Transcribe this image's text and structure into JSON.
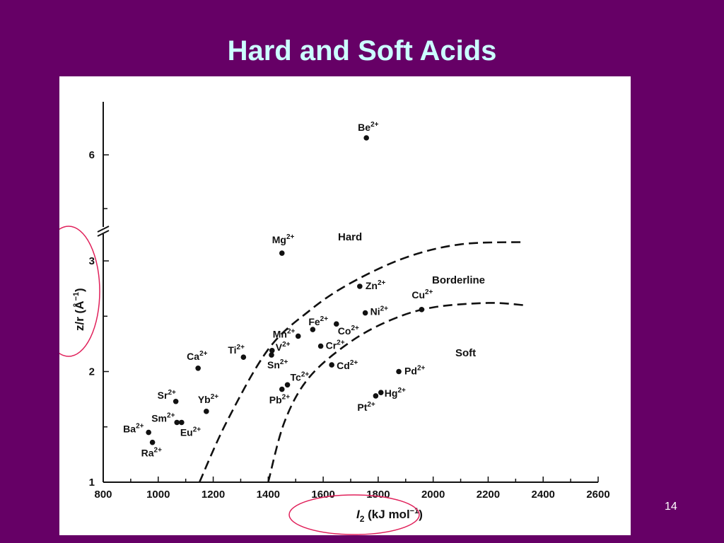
{
  "slide": {
    "title": "Hard and Soft Acids",
    "page_number": "14"
  },
  "colors": {
    "background": "#660066",
    "title": "#ccffff",
    "panel": "#ffffff",
    "ink": "#111111",
    "highlight_ring": "#e0205a"
  },
  "chart_data": {
    "type": "scatter",
    "title": "",
    "xlabel": "I2 (kJ mol−1)",
    "xlabel_parts": {
      "symbol": "I",
      "sub": "2",
      "unit": " (kJ mol",
      "exp": "−1",
      "close": ")"
    },
    "ylabel": "z/r (Å−1)",
    "ylabel_parts": {
      "main": "z/r (Å",
      "exp": "−1",
      "close": ")"
    },
    "xlim": [
      800,
      2600
    ],
    "x_ticks": [
      800,
      1000,
      1200,
      1400,
      1600,
      1800,
      2000,
      2200,
      2400,
      2600
    ],
    "y_ticks": [
      1,
      2,
      3,
      6
    ],
    "y_axis_break": {
      "between": [
        3.2,
        5.5
      ]
    },
    "grid": false,
    "region_labels": [
      "Hard",
      "Borderline",
      "Soft"
    ],
    "boundaries": [
      {
        "name": "hard-borderline",
        "style": "dashed",
        "points": [
          [
            1150,
            1.0
          ],
          [
            1250,
            1.55
          ],
          [
            1400,
            2.2
          ],
          [
            1550,
            2.55
          ],
          [
            1700,
            2.8
          ],
          [
            1900,
            3.03
          ],
          [
            2100,
            3.15
          ],
          [
            2330,
            3.17
          ]
        ]
      },
      {
        "name": "borderline-soft",
        "style": "dashed",
        "points": [
          [
            1400,
            1.0
          ],
          [
            1460,
            1.55
          ],
          [
            1550,
            1.95
          ],
          [
            1700,
            2.27
          ],
          [
            1850,
            2.47
          ],
          [
            2000,
            2.58
          ],
          [
            2200,
            2.62
          ],
          [
            2330,
            2.6
          ]
        ]
      }
    ],
    "points": [
      {
        "ion": "Be",
        "charge": "2+",
        "x": 1757,
        "y": 6.6
      },
      {
        "ion": "Mg",
        "charge": "2+",
        "x": 1450,
        "y": 3.07
      },
      {
        "ion": "Ca",
        "charge": "2+",
        "x": 1145,
        "y": 2.03
      },
      {
        "ion": "Sr",
        "charge": "2+",
        "x": 1064,
        "y": 1.73
      },
      {
        "ion": "Ba",
        "charge": "2+",
        "x": 965,
        "y": 1.45
      },
      {
        "ion": "Ra",
        "charge": "2+",
        "x": 979,
        "y": 1.36
      },
      {
        "ion": "Sm",
        "charge": "2+",
        "x": 1068,
        "y": 1.54
      },
      {
        "ion": "Eu",
        "charge": "2+",
        "x": 1085,
        "y": 1.54
      },
      {
        "ion": "Yb",
        "charge": "2+",
        "x": 1175,
        "y": 1.64
      },
      {
        "ion": "Ti",
        "charge": "2+",
        "x": 1310,
        "y": 2.13
      },
      {
        "ion": "V",
        "charge": "2+",
        "x": 1414,
        "y": 2.19
      },
      {
        "ion": "Sn",
        "charge": "2+",
        "x": 1412,
        "y": 2.15
      },
      {
        "ion": "Mn",
        "charge": "2+",
        "x": 1509,
        "y": 2.32
      },
      {
        "ion": "Fe",
        "charge": "2+",
        "x": 1562,
        "y": 2.38
      },
      {
        "ion": "Co",
        "charge": "2+",
        "x": 1648,
        "y": 2.43
      },
      {
        "ion": "Ni",
        "charge": "2+",
        "x": 1753,
        "y": 2.53
      },
      {
        "ion": "Cu",
        "charge": "2+",
        "x": 1958,
        "y": 2.56
      },
      {
        "ion": "Zn",
        "charge": "2+",
        "x": 1733,
        "y": 2.77
      },
      {
        "ion": "Cr",
        "charge": "2+",
        "x": 1591,
        "y": 2.23
      },
      {
        "ion": "Cd",
        "charge": "2+",
        "x": 1631,
        "y": 2.06
      },
      {
        "ion": "Tc",
        "charge": "2+",
        "x": 1470,
        "y": 1.88
      },
      {
        "ion": "Pb",
        "charge": "2+",
        "x": 1450,
        "y": 1.84
      },
      {
        "ion": "Pt",
        "charge": "2+",
        "x": 1791,
        "y": 1.78
      },
      {
        "ion": "Hg",
        "charge": "2+",
        "x": 1810,
        "y": 1.81
      },
      {
        "ion": "Pd",
        "charge": "2+",
        "x": 1875,
        "y": 2.0
      }
    ]
  }
}
